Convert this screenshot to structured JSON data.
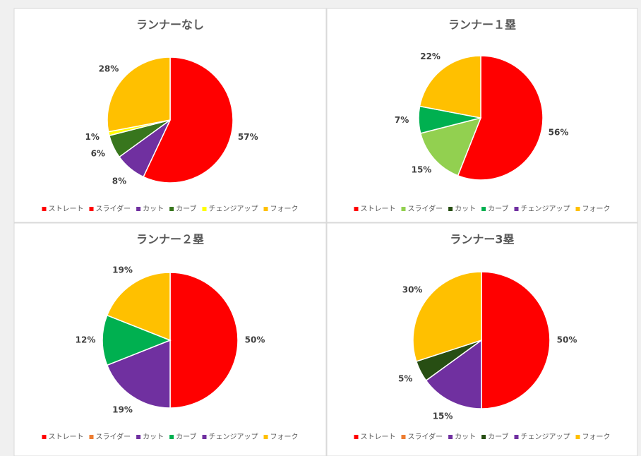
{
  "chart_data": [
    {
      "type": "pie",
      "title": "ランナーなし",
      "categories": [
        "ストレート",
        "スライダー",
        "カット",
        "カーブ",
        "チェンジアップ",
        "フォーク"
      ],
      "colors": [
        "#ff0000",
        "#ff0000",
        "#7030a0",
        "#38761d",
        "#ffff00",
        "#ffc000"
      ],
      "values": [
        57,
        0,
        8,
        6,
        1,
        28
      ],
      "value_labels": [
        "57%",
        null,
        "8%",
        "6%",
        "1%",
        "28%"
      ]
    },
    {
      "type": "pie",
      "title": "ランナー１塁",
      "categories": [
        "ストレート",
        "スライダー",
        "カット",
        "カーブ",
        "チェンジアップ",
        "フォーク"
      ],
      "colors": [
        "#ff0000",
        "#92d050",
        "#274e13",
        "#00b050",
        "#7030a0",
        "#ffc000"
      ],
      "values": [
        56,
        15,
        0,
        7,
        0,
        22
      ],
      "value_labels": [
        "56%",
        "15%",
        null,
        "7%",
        null,
        "22%"
      ]
    },
    {
      "type": "pie",
      "title": "ランナー２塁",
      "categories": [
        "ストレート",
        "スライダー",
        "カット",
        "カーブ",
        "チェンジアップ",
        "フォーク"
      ],
      "colors": [
        "#ff0000",
        "#ed7d31",
        "#7030a0",
        "#00b050",
        "#7030a0",
        "#ffc000"
      ],
      "values": [
        50,
        0,
        19,
        12,
        0,
        19
      ],
      "value_labels": [
        "50%",
        null,
        "19%",
        "12%",
        null,
        "19%"
      ]
    },
    {
      "type": "pie",
      "title": "ランナー3塁",
      "categories": [
        "ストレート",
        "スライダー",
        "カット",
        "カーブ",
        "チェンジアップ",
        "フォーク"
      ],
      "colors": [
        "#ff0000",
        "#ed7d31",
        "#7030a0",
        "#274e13",
        "#7030a0",
        "#ffc000"
      ],
      "values": [
        50,
        0,
        15,
        5,
        0,
        30
      ],
      "value_labels": [
        "50%",
        null,
        "15%",
        "5%",
        null,
        "30%"
      ]
    }
  ]
}
